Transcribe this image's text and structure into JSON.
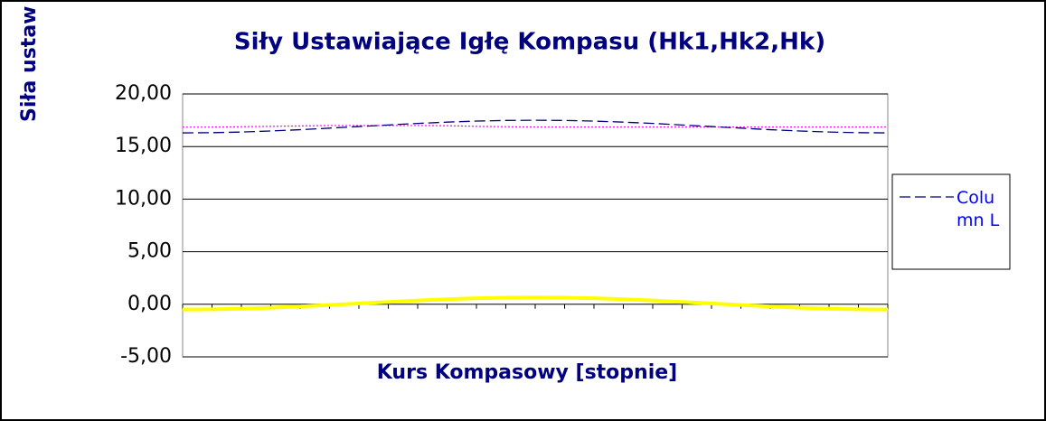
{
  "chart_data": {
    "type": "line",
    "title": "Siły Ustawiające Igłę Kompasu (Hk1,Hk2,Hk)",
    "xlabel": "Kurs Kompasowy  [stopnie]",
    "ylabel": "Siła ustaw",
    "categories": [
      null,
      null,
      null,
      null,
      null,
      null,
      null,
      null,
      null,
      null,
      null,
      null,
      null,
      null,
      null,
      null,
      null,
      null,
      null,
      null,
      null,
      null,
      null,
      null,
      null
    ],
    "series": [
      {
        "name": "Column L",
        "color": "#000080",
        "dash": "dashed",
        "values": [
          16.3,
          16.32,
          16.38,
          16.48,
          16.6,
          16.75,
          16.9,
          17.05,
          17.2,
          17.32,
          17.42,
          17.48,
          17.5,
          17.48,
          17.42,
          17.32,
          17.2,
          17.05,
          16.9,
          16.75,
          16.6,
          16.48,
          16.38,
          16.32,
          16.3
        ]
      },
      {
        "color": "#ff00ff",
        "dash": "dotted",
        "values": [
          16.85,
          16.85,
          16.88,
          16.92,
          16.96,
          17.0,
          17.0,
          17.0,
          17.0,
          16.98,
          16.92,
          16.88,
          16.86,
          16.86,
          16.86,
          16.86,
          16.86,
          16.86,
          16.86,
          16.86,
          16.86,
          16.86,
          16.86,
          16.86,
          16.86
        ]
      },
      {
        "color": "#ffff00",
        "dash": "solid",
        "values": [
          -0.5,
          -0.48,
          -0.42,
          -0.33,
          -0.21,
          -0.07,
          0.08,
          0.22,
          0.36,
          0.48,
          0.57,
          0.63,
          0.65,
          0.63,
          0.57,
          0.48,
          0.36,
          0.22,
          0.08,
          -0.07,
          -0.21,
          -0.33,
          -0.42,
          -0.48,
          -0.5
        ]
      }
    ],
    "ylim": [
      -5,
      20
    ],
    "yticks": [
      {
        "value": -5,
        "label": "-5,00"
      },
      {
        "value": 0,
        "label": "0,00"
      },
      {
        "value": 5,
        "label": "5,00"
      },
      {
        "value": 10,
        "label": "10,00"
      },
      {
        "value": 15,
        "label": "15,00"
      },
      {
        "value": 20,
        "label": "20,00"
      }
    ],
    "grid": true,
    "legend": "right"
  }
}
